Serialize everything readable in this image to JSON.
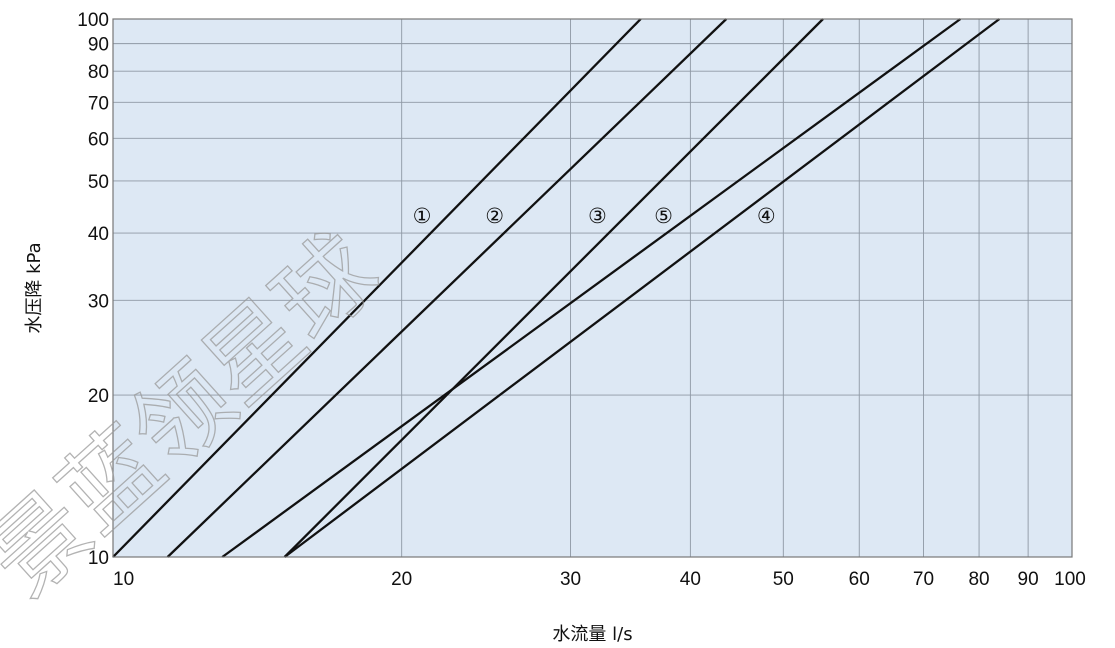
{
  "chart_data": {
    "type": "line",
    "xscale": "log",
    "yscale": "log",
    "xlabel": "水流量 l/s",
    "ylabel": "水压降 kPa",
    "xlim": [
      10,
      100
    ],
    "ylim": [
      10,
      100
    ],
    "grid": true,
    "background_color": "#dde8f4",
    "line_color": "#111111",
    "x_ticks": [
      10,
      20,
      30,
      40,
      50,
      60,
      70,
      80,
      90,
      100
    ],
    "y_ticks": [
      10,
      20,
      30,
      40,
      50,
      60,
      70,
      80,
      90,
      100
    ],
    "series": [
      {
        "name": "①",
        "x": [
          10,
          35.5
        ],
        "y": [
          10,
          100
        ],
        "label_at": [
          21,
          43
        ]
      },
      {
        "name": "②",
        "x": [
          11.4,
          43.6
        ],
        "y": [
          10,
          100
        ],
        "label_at": [
          25,
          43
        ]
      },
      {
        "name": "③",
        "x": [
          15.1,
          55
        ],
        "y": [
          10,
          100
        ],
        "label_at": [
          32,
          43
        ]
      },
      {
        "name": "⑤",
        "x": [
          13,
          76.5
        ],
        "y": [
          10,
          100
        ],
        "label_at": [
          37.5,
          43
        ]
      },
      {
        "name": "④",
        "x": [
          15.1,
          84
        ],
        "y": [
          10,
          100
        ],
        "label_at": [
          48,
          43
        ]
      }
    ],
    "watermark": "景蓝领星球"
  }
}
